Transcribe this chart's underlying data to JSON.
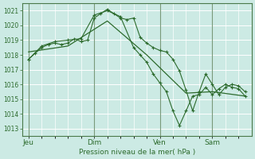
{
  "title": "Pression niveau de la mer( hPa )",
  "bg_color": "#cceae4",
  "grid_color": "#ffffff",
  "line_color": "#2d6b2d",
  "ylim": [
    1012.5,
    1021.5
  ],
  "yticks": [
    1013,
    1014,
    1015,
    1016,
    1017,
    1018,
    1019,
    1020,
    1021
  ],
  "day_labels": [
    "Jeu",
    "Dim",
    "Ven",
    "Sam"
  ],
  "day_positions": [
    0,
    10,
    20,
    28
  ],
  "xlim": [
    -1,
    34
  ],
  "series1_x": [
    0,
    1,
    2,
    3,
    4,
    5,
    6,
    7,
    8,
    9,
    10,
    11,
    12,
    13,
    14,
    15,
    16,
    17,
    18,
    19,
    20,
    21,
    22,
    23,
    24,
    25,
    26,
    27,
    28,
    29,
    30,
    31,
    32,
    33
  ],
  "series1_y": [
    1017.7,
    1018.1,
    1018.5,
    1018.7,
    1018.8,
    1018.7,
    1018.8,
    1019.1,
    1018.9,
    1019.0,
    1020.5,
    1020.8,
    1021.1,
    1020.8,
    1020.5,
    1020.4,
    1020.5,
    1019.2,
    1018.8,
    1018.5,
    1018.3,
    1018.2,
    1017.7,
    1016.9,
    1015.6,
    1014.2,
    1015.5,
    1016.7,
    1016.0,
    1015.3,
    1015.8,
    1016.0,
    1015.9,
    1015.5
  ],
  "series2_x": [
    0,
    2,
    4,
    6,
    8,
    10,
    12,
    14,
    16,
    17,
    18,
    19,
    20,
    21,
    22,
    23,
    24,
    25,
    26,
    27,
    28,
    29,
    30,
    31,
    32,
    33
  ],
  "series2_y": [
    1017.7,
    1018.6,
    1018.9,
    1019.0,
    1019.1,
    1020.7,
    1021.0,
    1020.6,
    1018.5,
    1018.0,
    1017.5,
    1016.7,
    1016.1,
    1015.5,
    1014.2,
    1013.2,
    1014.2,
    1015.2,
    1015.3,
    1015.8,
    1015.3,
    1015.7,
    1016.0,
    1015.8,
    1015.7,
    1015.2
  ],
  "series3_x": [
    0,
    6,
    12,
    18,
    24,
    28,
    33
  ],
  "series3_y": [
    1018.2,
    1018.6,
    1020.3,
    1018.0,
    1015.4,
    1015.5,
    1015.2
  ]
}
